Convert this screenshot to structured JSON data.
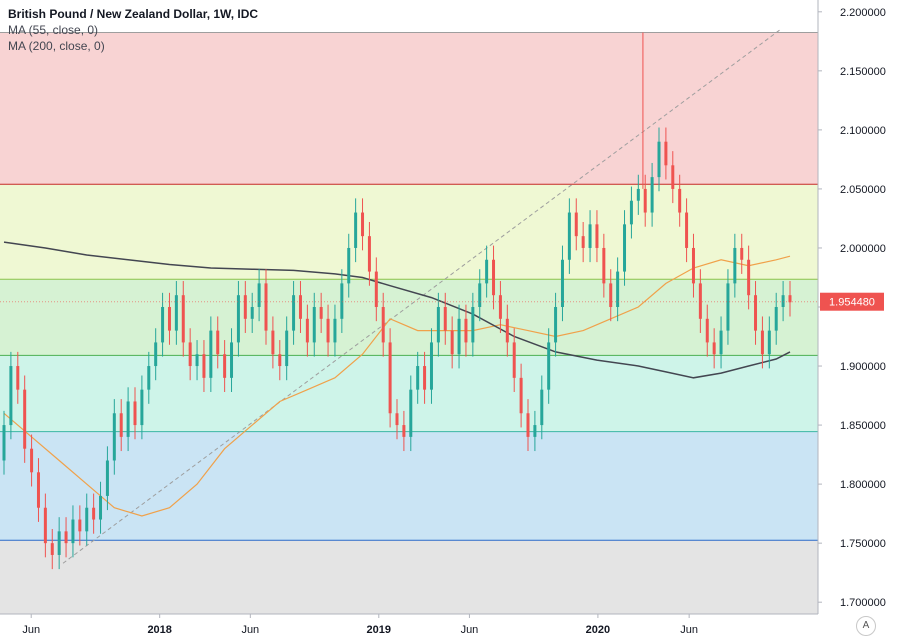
{
  "legend": {
    "title": "British Pound / New Zealand Dollar, 1W, IDC",
    "ma1": "MA (55, close, 0)",
    "ma2": "MA (200, close, 0)"
  },
  "auto_button": "A",
  "colors": {
    "up": "#26a69a",
    "down": "#ef5350",
    "ma55": "#f0a14a",
    "ma200": "#434651",
    "price_tag": "#ef5350"
  },
  "chart_data": {
    "type": "candlestick",
    "ylim": [
      1.69,
      2.21
    ],
    "y_ticks": [
      1.7,
      1.75,
      1.8,
      1.85,
      1.9,
      1.95,
      2.0,
      2.05,
      2.1,
      2.15,
      2.2
    ],
    "y_tick_labels": [
      "1.700000",
      "1.750000",
      "1.800000",
      "1.850000",
      "1.900000",
      "",
      "2.000000",
      "2.050000",
      "2.100000",
      "2.150000",
      "2.200000"
    ],
    "x_range": [
      "2017-04-10",
      "2020-11-16"
    ],
    "x_ticks": [
      {
        "label": "Jun",
        "date": "2017-06-01",
        "bold": false
      },
      {
        "label": "2018",
        "date": "2018-01-01",
        "bold": true
      },
      {
        "label": "Jun",
        "date": "2018-06-01",
        "bold": false
      },
      {
        "label": "2019",
        "date": "2019-01-01",
        "bold": true
      },
      {
        "label": "Jun",
        "date": "2019-06-01",
        "bold": false
      },
      {
        "label": "2020",
        "date": "2020-01-01",
        "bold": true
      },
      {
        "label": "Jun",
        "date": "2020-06-01",
        "bold": false
      }
    ],
    "fib_levels": [
      1.7525,
      1.8445,
      1.909,
      1.9735,
      2.054,
      2.1825
    ],
    "fib_zones": [
      {
        "from": 1.69,
        "to": 1.7525,
        "color": "#d9d9d9"
      },
      {
        "from": 1.7525,
        "to": 1.8445,
        "color": "#b3d9f0"
      },
      {
        "from": 1.8445,
        "to": 1.909,
        "color": "#b9efe0"
      },
      {
        "from": 1.909,
        "to": 1.9735,
        "color": "#c4ecc0"
      },
      {
        "from": 1.9735,
        "to": 2.054,
        "color": "#e8f5c0"
      },
      {
        "from": 2.054,
        "to": 2.1825,
        "color": "#f5c1c1"
      }
    ],
    "fib_line_colors": [
      "#2a6ac9",
      "#3bb6a4",
      "#4caf50",
      "#8bc34a",
      "#c62828",
      "#9e9e9e"
    ],
    "trend_line": {
      "from": {
        "date": "2017-07-24",
        "price": 1.733
      },
      "to": {
        "date": "2020-10-31",
        "price": 2.185
      }
    },
    "spike": {
      "date": "2020-03-16",
      "price": 2.1825
    },
    "last_price": 1.95448,
    "last_price_label": "1.954480",
    "candles": [
      [
        1.82,
        1.85
      ],
      [
        1.85,
        1.9
      ],
      [
        1.9,
        1.88
      ],
      [
        1.88,
        1.83
      ],
      [
        1.83,
        1.81
      ],
      [
        1.81,
        1.78
      ],
      [
        1.78,
        1.75
      ],
      [
        1.75,
        1.74
      ],
      [
        1.74,
        1.76
      ],
      [
        1.76,
        1.75
      ],
      [
        1.75,
        1.77
      ],
      [
        1.77,
        1.76
      ],
      [
        1.76,
        1.78
      ],
      [
        1.78,
        1.77
      ],
      [
        1.77,
        1.79
      ],
      [
        1.79,
        1.82
      ],
      [
        1.82,
        1.86
      ],
      [
        1.86,
        1.84
      ],
      [
        1.84,
        1.87
      ],
      [
        1.87,
        1.85
      ],
      [
        1.85,
        1.88
      ],
      [
        1.88,
        1.9
      ],
      [
        1.9,
        1.92
      ],
      [
        1.92,
        1.95
      ],
      [
        1.95,
        1.93
      ],
      [
        1.93,
        1.96
      ],
      [
        1.96,
        1.92
      ],
      [
        1.92,
        1.9
      ],
      [
        1.9,
        1.91
      ],
      [
        1.91,
        1.89
      ],
      [
        1.89,
        1.93
      ],
      [
        1.93,
        1.91
      ],
      [
        1.91,
        1.89
      ],
      [
        1.89,
        1.92
      ],
      [
        1.92,
        1.96
      ],
      [
        1.96,
        1.94
      ],
      [
        1.94,
        1.95
      ],
      [
        1.95,
        1.97
      ],
      [
        1.97,
        1.93
      ],
      [
        1.93,
        1.91
      ],
      [
        1.91,
        1.9
      ],
      [
        1.9,
        1.93
      ],
      [
        1.93,
        1.96
      ],
      [
        1.96,
        1.94
      ],
      [
        1.94,
        1.92
      ],
      [
        1.92,
        1.95
      ],
      [
        1.95,
        1.94
      ],
      [
        1.94,
        1.92
      ],
      [
        1.92,
        1.94
      ],
      [
        1.94,
        1.97
      ],
      [
        1.97,
        2.0
      ],
      [
        2.0,
        2.03
      ],
      [
        2.03,
        2.01
      ],
      [
        2.01,
        1.98
      ],
      [
        1.98,
        1.95
      ],
      [
        1.95,
        1.92
      ],
      [
        1.92,
        1.86
      ],
      [
        1.86,
        1.85
      ],
      [
        1.85,
        1.84
      ],
      [
        1.84,
        1.88
      ],
      [
        1.88,
        1.9
      ],
      [
        1.9,
        1.88
      ],
      [
        1.88,
        1.92
      ],
      [
        1.92,
        1.95
      ],
      [
        1.95,
        1.93
      ],
      [
        1.93,
        1.91
      ],
      [
        1.91,
        1.94
      ],
      [
        1.94,
        1.92
      ],
      [
        1.92,
        1.95
      ],
      [
        1.95,
        1.97
      ],
      [
        1.97,
        1.99
      ],
      [
        1.99,
        1.96
      ],
      [
        1.96,
        1.94
      ],
      [
        1.94,
        1.92
      ],
      [
        1.92,
        1.89
      ],
      [
        1.89,
        1.86
      ],
      [
        1.86,
        1.84
      ],
      [
        1.84,
        1.85
      ],
      [
        1.85,
        1.88
      ],
      [
        1.88,
        1.92
      ],
      [
        1.92,
        1.95
      ],
      [
        1.95,
        1.99
      ],
      [
        1.99,
        2.03
      ],
      [
        2.03,
        2.01
      ],
      [
        2.01,
        2.0
      ],
      [
        2.0,
        2.02
      ],
      [
        2.02,
        2.0
      ],
      [
        2.0,
        1.97
      ],
      [
        1.97,
        1.95
      ],
      [
        1.95,
        1.98
      ],
      [
        1.98,
        2.02
      ],
      [
        2.02,
        2.04
      ],
      [
        2.04,
        2.05
      ],
      [
        2.05,
        2.03
      ],
      [
        2.03,
        2.06
      ],
      [
        2.06,
        2.09
      ],
      [
        2.09,
        2.07
      ],
      [
        2.07,
        2.05
      ],
      [
        2.05,
        2.03
      ],
      [
        2.03,
        2.0
      ],
      [
        2.0,
        1.97
      ],
      [
        1.97,
        1.94
      ],
      [
        1.94,
        1.92
      ],
      [
        1.92,
        1.91
      ],
      [
        1.91,
        1.93
      ],
      [
        1.93,
        1.97
      ],
      [
        1.97,
        2.0
      ],
      [
        2.0,
        1.99
      ],
      [
        1.99,
        1.96
      ],
      [
        1.96,
        1.93
      ],
      [
        1.93,
        1.91
      ],
      [
        1.91,
        1.93
      ],
      [
        1.93,
        1.95
      ],
      [
        1.95,
        1.96
      ],
      [
        1.96,
        1.954
      ]
    ],
    "ma55": [
      [
        1.86,
        0
      ],
      [
        1.84,
        4
      ],
      [
        1.82,
        8
      ],
      [
        1.8,
        12
      ],
      [
        1.78,
        16
      ],
      [
        1.773,
        20
      ],
      [
        1.78,
        24
      ],
      [
        1.8,
        28
      ],
      [
        1.83,
        32
      ],
      [
        1.85,
        36
      ],
      [
        1.87,
        40
      ],
      [
        1.88,
        44
      ],
      [
        1.89,
        48
      ],
      [
        1.91,
        52
      ],
      [
        1.94,
        56
      ],
      [
        1.93,
        60
      ],
      [
        1.93,
        64
      ],
      [
        1.93,
        68
      ],
      [
        1.935,
        72
      ],
      [
        1.93,
        76
      ],
      [
        1.925,
        80
      ],
      [
        1.93,
        84
      ],
      [
        1.94,
        88
      ],
      [
        1.95,
        92
      ],
      [
        1.97,
        96
      ],
      [
        1.983,
        100
      ],
      [
        1.99,
        104
      ],
      [
        1.985,
        108
      ],
      [
        1.99,
        112
      ],
      [
        1.993,
        114
      ]
    ],
    "ma200": [
      [
        2.005,
        0
      ],
      [
        2.0,
        6
      ],
      [
        1.994,
        12
      ],
      [
        1.99,
        18
      ],
      [
        1.986,
        24
      ],
      [
        1.983,
        30
      ],
      [
        1.982,
        36
      ],
      [
        1.981,
        42
      ],
      [
        1.978,
        48
      ],
      [
        1.975,
        52
      ],
      [
        1.968,
        56
      ],
      [
        1.958,
        62
      ],
      [
        1.944,
        68
      ],
      [
        1.925,
        74
      ],
      [
        1.912,
        80
      ],
      [
        1.905,
        86
      ],
      [
        1.9,
        92
      ],
      [
        1.895,
        96
      ],
      [
        1.89,
        100
      ],
      [
        1.894,
        104
      ],
      [
        1.9,
        108
      ],
      [
        1.906,
        112
      ],
      [
        1.912,
        114
      ]
    ]
  }
}
